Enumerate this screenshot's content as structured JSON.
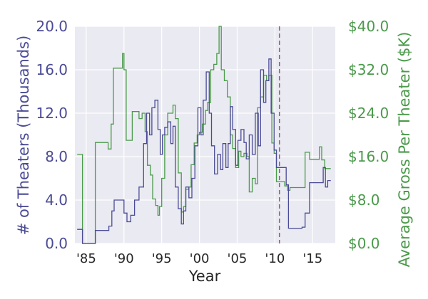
{
  "chart_data": {
    "type": "line",
    "subtype": "step",
    "dual_axis": true,
    "title": "",
    "xlabel": "Year",
    "ylabel_left": "# of Theaters (Thousands)",
    "ylabel_right": "Average Gross Per Theater ($K)",
    "xlim": [
      1983.5,
      2018.0
    ],
    "ylim_left": [
      0,
      20
    ],
    "ylim_right": [
      0,
      40
    ],
    "grid": true,
    "legend": "none",
    "x_ticks": [
      {
        "value": 1985,
        "label": "'85"
      },
      {
        "value": 1990,
        "label": "'90"
      },
      {
        "value": 1995,
        "label": "'95"
      },
      {
        "value": 2000,
        "label": "'00"
      },
      {
        "value": 2005,
        "label": "'05"
      },
      {
        "value": 2010,
        "label": "'10"
      },
      {
        "value": 2015,
        "label": "'15"
      }
    ],
    "y_ticks_left": [
      {
        "value": 0,
        "label": "0.0"
      },
      {
        "value": 4,
        "label": "4.0"
      },
      {
        "value": 8,
        "label": "8.0"
      },
      {
        "value": 12,
        "label": "12.0"
      },
      {
        "value": 16,
        "label": "16.0"
      },
      {
        "value": 20,
        "label": "20.0"
      }
    ],
    "y_ticks_right": [
      {
        "value": 0,
        "label": "$0.0"
      },
      {
        "value": 8,
        "label": "$8.0"
      },
      {
        "value": 16,
        "label": "$16.0"
      },
      {
        "value": 24,
        "label": "$24.0"
      },
      {
        "value": 32,
        "label": "$32.0"
      },
      {
        "value": 40,
        "label": "$40.0"
      }
    ],
    "vertical_line": {
      "x": 2010.6,
      "style": "dashed",
      "color": "#a0576f"
    },
    "colors": {
      "theaters": "#4a4a96",
      "gross": "#4a9a4a",
      "plot_bg": "#eaeaf2",
      "grid": "#ffffff"
    },
    "series": [
      {
        "axis": "left",
        "color": "#4a4a96",
        "points": [
          [
            1983.8,
            1.3
          ],
          [
            1984.5,
            1.3
          ],
          [
            1984.5,
            0.0
          ],
          [
            1986.2,
            0.0
          ],
          [
            1986.2,
            1.2
          ],
          [
            1988.0,
            1.2
          ],
          [
            1988.0,
            1.6
          ],
          [
            1988.4,
            1.6
          ],
          [
            1988.4,
            3.0
          ],
          [
            1988.7,
            3.0
          ],
          [
            1988.7,
            4.0
          ],
          [
            1990.0,
            4.0
          ],
          [
            1990.0,
            2.8
          ],
          [
            1990.4,
            2.8
          ],
          [
            1990.4,
            2.0
          ],
          [
            1990.9,
            2.0
          ],
          [
            1990.9,
            2.6
          ],
          [
            1991.4,
            2.6
          ],
          [
            1991.4,
            4.0
          ],
          [
            1992.0,
            4.0
          ],
          [
            1992.0,
            5.2
          ],
          [
            1992.6,
            5.2
          ],
          [
            1992.6,
            9.2
          ],
          [
            1993.0,
            9.2
          ],
          [
            1993.0,
            12.0
          ],
          [
            1993.4,
            12.0
          ],
          [
            1993.4,
            10.0
          ],
          [
            1993.7,
            10.0
          ],
          [
            1993.7,
            12.5
          ],
          [
            1994.1,
            12.5
          ],
          [
            1994.1,
            13.2
          ],
          [
            1994.5,
            13.2
          ],
          [
            1994.5,
            10.5
          ],
          [
            1994.8,
            10.5
          ],
          [
            1994.8,
            8.2
          ],
          [
            1995.1,
            8.2
          ],
          [
            1995.1,
            10.0
          ],
          [
            1995.4,
            10.0
          ],
          [
            1995.4,
            10.7
          ],
          [
            1995.8,
            10.7
          ],
          [
            1995.8,
            11.2
          ],
          [
            1996.2,
            11.2
          ],
          [
            1996.2,
            9.2
          ],
          [
            1996.5,
            9.2
          ],
          [
            1996.5,
            10.8
          ],
          [
            1996.8,
            10.8
          ],
          [
            1996.8,
            5.2
          ],
          [
            1997.2,
            5.2
          ],
          [
            1997.2,
            3.2
          ],
          [
            1997.6,
            3.2
          ],
          [
            1997.6,
            1.8
          ],
          [
            1997.9,
            1.8
          ],
          [
            1997.9,
            3.0
          ],
          [
            1998.2,
            3.0
          ],
          [
            1998.2,
            5.2
          ],
          [
            1998.6,
            5.2
          ],
          [
            1998.6,
            4.2
          ],
          [
            1999.0,
            4.2
          ],
          [
            1999.0,
            6.0
          ],
          [
            1999.4,
            6.0
          ],
          [
            1999.4,
            9.0
          ],
          [
            1999.8,
            9.0
          ],
          [
            1999.8,
            12.5
          ],
          [
            2000.2,
            12.5
          ],
          [
            2000.2,
            10.0
          ],
          [
            2000.5,
            10.0
          ],
          [
            2000.5,
            13.2
          ],
          [
            2000.9,
            13.2
          ],
          [
            2000.9,
            15.8
          ],
          [
            2001.3,
            15.8
          ],
          [
            2001.3,
            12.0
          ],
          [
            2001.6,
            12.0
          ],
          [
            2001.6,
            9.0
          ],
          [
            2002.0,
            9.0
          ],
          [
            2002.0,
            6.4
          ],
          [
            2002.4,
            6.4
          ],
          [
            2002.4,
            8.2
          ],
          [
            2002.8,
            8.2
          ],
          [
            2002.8,
            6.8
          ],
          [
            2003.1,
            6.8
          ],
          [
            2003.1,
            9.2
          ],
          [
            2003.5,
            9.2
          ],
          [
            2003.5,
            7.0
          ],
          [
            2003.8,
            7.0
          ],
          [
            2003.8,
            9.2
          ],
          [
            2004.1,
            9.2
          ],
          [
            2004.1,
            12.6
          ],
          [
            2004.4,
            12.6
          ],
          [
            2004.4,
            10.5
          ],
          [
            2004.8,
            10.5
          ],
          [
            2004.8,
            7.2
          ],
          [
            2005.1,
            7.2
          ],
          [
            2005.1,
            9.5
          ],
          [
            2005.5,
            9.5
          ],
          [
            2005.5,
            10.5
          ],
          [
            2005.9,
            10.5
          ],
          [
            2005.9,
            9.3
          ],
          [
            2006.2,
            9.3
          ],
          [
            2006.2,
            7.8
          ],
          [
            2006.6,
            7.8
          ],
          [
            2006.6,
            10.0
          ],
          [
            2007.0,
            10.0
          ],
          [
            2007.0,
            8.2
          ],
          [
            2007.4,
            8.2
          ],
          [
            2007.4,
            12.0
          ],
          [
            2007.8,
            12.0
          ],
          [
            2007.8,
            9.0
          ],
          [
            2008.1,
            9.0
          ],
          [
            2008.1,
            16.0
          ],
          [
            2008.5,
            16.0
          ],
          [
            2008.5,
            13.0
          ],
          [
            2008.8,
            13.0
          ],
          [
            2008.8,
            15.0
          ],
          [
            2009.2,
            15.0
          ],
          [
            2009.2,
            17.0
          ],
          [
            2009.5,
            17.0
          ],
          [
            2009.5,
            12.0
          ],
          [
            2009.9,
            12.0
          ],
          [
            2009.9,
            8.6
          ],
          [
            2010.2,
            8.6
          ],
          [
            2010.2,
            7.0
          ],
          [
            2011.5,
            7.0
          ],
          [
            2011.5,
            5.4
          ],
          [
            2011.8,
            5.4
          ],
          [
            2011.8,
            1.4
          ],
          [
            2013.6,
            1.4
          ],
          [
            2013.6,
            1.5
          ],
          [
            2014.0,
            1.5
          ],
          [
            2014.0,
            2.8
          ],
          [
            2014.6,
            2.8
          ],
          [
            2014.6,
            5.6
          ],
          [
            2016.4,
            5.6
          ],
          [
            2016.4,
            7.0
          ],
          [
            2016.7,
            7.0
          ],
          [
            2016.7,
            5.2
          ],
          [
            2017.0,
            5.2
          ],
          [
            2017.0,
            5.8
          ],
          [
            2017.4,
            5.8
          ]
        ]
      },
      {
        "axis": "right",
        "color": "#4a9a4a",
        "points": [
          [
            1983.8,
            16.4
          ],
          [
            1984.5,
            16.4
          ],
          [
            1984.5,
            0.0
          ],
          [
            1986.2,
            0.0
          ],
          [
            1986.2,
            18.6
          ],
          [
            1987.9,
            18.6
          ],
          [
            1987.9,
            17.4
          ],
          [
            1988.3,
            17.4
          ],
          [
            1988.3,
            22.0
          ],
          [
            1988.6,
            22.0
          ],
          [
            1988.6,
            32.3
          ],
          [
            1989.8,
            32.3
          ],
          [
            1989.8,
            35.0
          ],
          [
            1990.0,
            35.0
          ],
          [
            1990.0,
            32.0
          ],
          [
            1990.3,
            32.0
          ],
          [
            1990.3,
            19.0
          ],
          [
            1991.1,
            19.0
          ],
          [
            1991.1,
            24.3
          ],
          [
            1992.0,
            24.3
          ],
          [
            1992.0,
            23.0
          ],
          [
            1992.4,
            23.0
          ],
          [
            1992.4,
            24.0
          ],
          [
            1992.8,
            24.0
          ],
          [
            1992.8,
            20.6
          ],
          [
            1993.1,
            20.6
          ],
          [
            1993.1,
            14.4
          ],
          [
            1993.5,
            14.4
          ],
          [
            1993.5,
            12.6
          ],
          [
            1993.8,
            12.6
          ],
          [
            1993.8,
            8.2
          ],
          [
            1994.2,
            8.2
          ],
          [
            1994.2,
            7.0
          ],
          [
            1994.5,
            7.0
          ],
          [
            1994.5,
            5.2
          ],
          [
            1994.7,
            5.2
          ],
          [
            1994.7,
            6.8
          ],
          [
            1995.0,
            6.8
          ],
          [
            1995.0,
            12.0
          ],
          [
            1995.4,
            12.0
          ],
          [
            1995.4,
            20.0
          ],
          [
            1995.8,
            20.0
          ],
          [
            1995.8,
            24.0
          ],
          [
            1996.5,
            24.0
          ],
          [
            1996.5,
            25.5
          ],
          [
            1996.8,
            25.5
          ],
          [
            1996.8,
            23.0
          ],
          [
            1997.2,
            23.0
          ],
          [
            1997.2,
            13.0
          ],
          [
            1997.6,
            13.0
          ],
          [
            1997.6,
            5.8
          ],
          [
            1997.9,
            5.8
          ],
          [
            1997.9,
            6.8
          ],
          [
            1998.2,
            6.8
          ],
          [
            1998.2,
            10.0
          ],
          [
            1998.6,
            10.0
          ],
          [
            1998.6,
            10.4
          ],
          [
            1998.9,
            10.4
          ],
          [
            1998.9,
            14.5
          ],
          [
            1999.3,
            14.5
          ],
          [
            1999.3,
            18.5
          ],
          [
            1999.7,
            18.5
          ],
          [
            1999.7,
            20.0
          ],
          [
            2000.0,
            20.0
          ],
          [
            2000.0,
            20.5
          ],
          [
            2000.4,
            20.5
          ],
          [
            2000.4,
            22.0
          ],
          [
            2000.8,
            22.0
          ],
          [
            2000.8,
            24.5
          ],
          [
            2001.1,
            24.5
          ],
          [
            2001.1,
            26.0
          ],
          [
            2001.5,
            26.0
          ],
          [
            2001.5,
            32.0
          ],
          [
            2001.9,
            32.0
          ],
          [
            2001.9,
            33.0
          ],
          [
            2002.3,
            33.0
          ],
          [
            2002.3,
            35.0
          ],
          [
            2002.6,
            35.0
          ],
          [
            2002.6,
            40.0
          ],
          [
            2002.9,
            40.0
          ],
          [
            2002.9,
            32.0
          ],
          [
            2003.3,
            32.0
          ],
          [
            2003.3,
            30.0
          ],
          [
            2003.7,
            30.0
          ],
          [
            2003.7,
            27.0
          ],
          [
            2004.1,
            27.0
          ],
          [
            2004.1,
            20.0
          ],
          [
            2004.4,
            20.0
          ],
          [
            2004.4,
            17.5
          ],
          [
            2004.8,
            17.5
          ],
          [
            2004.8,
            14.0
          ],
          [
            2005.2,
            14.0
          ],
          [
            2005.2,
            17.0
          ],
          [
            2005.5,
            17.0
          ],
          [
            2005.5,
            16.0
          ],
          [
            2005.9,
            16.0
          ],
          [
            2005.9,
            16.6
          ],
          [
            2006.3,
            16.6
          ],
          [
            2006.3,
            16.0
          ],
          [
            2006.6,
            16.0
          ],
          [
            2006.6,
            9.5
          ],
          [
            2007.0,
            9.5
          ],
          [
            2007.0,
            12.0
          ],
          [
            2007.4,
            12.0
          ],
          [
            2007.4,
            11.0
          ],
          [
            2007.7,
            11.0
          ],
          [
            2007.7,
            25.0
          ],
          [
            2008.1,
            25.0
          ],
          [
            2008.1,
            27.0
          ],
          [
            2008.5,
            27.0
          ],
          [
            2008.5,
            31.0
          ],
          [
            2008.9,
            31.0
          ],
          [
            2008.9,
            30.0
          ],
          [
            2009.2,
            30.0
          ],
          [
            2009.2,
            31.0
          ],
          [
            2009.6,
            31.0
          ],
          [
            2009.6,
            18.5
          ],
          [
            2009.9,
            18.5
          ],
          [
            2009.9,
            16.6
          ],
          [
            2010.2,
            16.6
          ],
          [
            2010.2,
            11.4
          ],
          [
            2011.3,
            11.4
          ],
          [
            2011.3,
            10.6
          ],
          [
            2011.7,
            10.6
          ],
          [
            2011.7,
            9.8
          ],
          [
            2012.0,
            9.8
          ],
          [
            2012.0,
            10.3
          ],
          [
            2014.0,
            10.3
          ],
          [
            2014.0,
            16.8
          ],
          [
            2014.6,
            16.8
          ],
          [
            2014.6,
            15.5
          ],
          [
            2015.9,
            15.5
          ],
          [
            2015.9,
            17.8
          ],
          [
            2016.2,
            17.8
          ],
          [
            2016.2,
            15.4
          ],
          [
            2016.6,
            15.4
          ],
          [
            2016.6,
            13.8
          ],
          [
            2017.4,
            13.8
          ]
        ]
      }
    ]
  }
}
